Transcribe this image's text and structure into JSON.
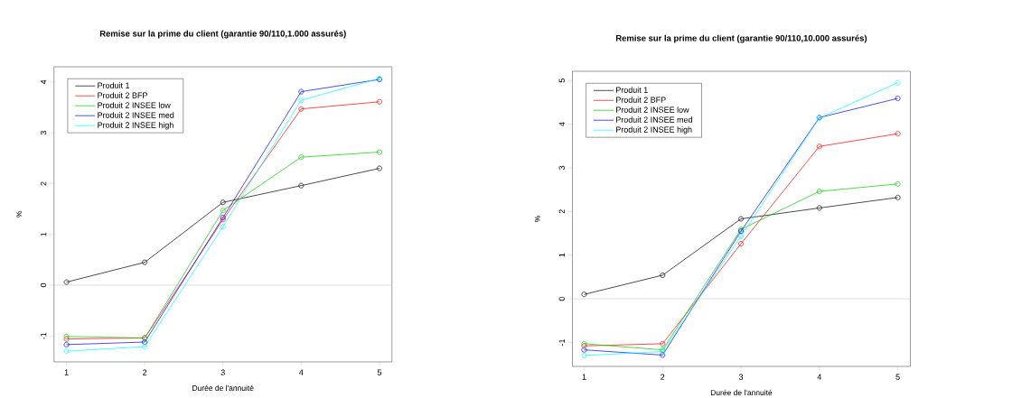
{
  "chart_data": [
    {
      "type": "line",
      "title": "Remise sur la prime du client (garantie 90/110,1.000 assurés)",
      "xlabel": "Durée de l'annuité",
      "ylabel": "%",
      "x": [
        1,
        2,
        3,
        4,
        5
      ],
      "xlim": [
        0.84,
        5.16
      ],
      "ylim": [
        -1.51,
        4.3
      ],
      "xticks": [
        1,
        2,
        3,
        4,
        5
      ],
      "yticks": [
        -1,
        0,
        1,
        2,
        3,
        4
      ],
      "marker": "circle",
      "legend": "top left",
      "grid": false,
      "ref_lines": [
        {
          "axis": "y",
          "value": 0,
          "color": "#d3d3d3"
        }
      ],
      "series": [
        {
          "name": "Produit 1",
          "color": "#000000",
          "values": [
            0.06,
            0.45,
            1.63,
            1.96,
            2.3
          ]
        },
        {
          "name": "Produit 2 BFP",
          "color": "#ff0000",
          "values": [
            -1.06,
            -1.04,
            1.29,
            3.47,
            3.61
          ]
        },
        {
          "name": "Produit 2 INSEE low",
          "color": "#00cd00",
          "values": [
            -1.01,
            -1.04,
            1.47,
            2.52,
            2.62
          ]
        },
        {
          "name": "Produit 2 INSEE med",
          "color": "#0000ff",
          "values": [
            -1.17,
            -1.12,
            1.33,
            3.81,
            4.05
          ]
        },
        {
          "name": "Produit 2 INSEE high",
          "color": "#00ffff",
          "values": [
            -1.3,
            -1.21,
            1.15,
            3.64,
            4.07
          ]
        }
      ]
    },
    {
      "type": "line",
      "title": "Remise sur la prime du client (garantie 90/110,10.000 assurés)",
      "xlabel": "Durée de l'annuité",
      "ylabel": "%",
      "x": [
        1,
        2,
        3,
        4,
        5
      ],
      "xlim": [
        0.85,
        5.16
      ],
      "ylim": [
        -1.55,
        5.21
      ],
      "xticks": [
        1,
        2,
        3,
        4,
        5
      ],
      "yticks": [
        -1,
        0,
        1,
        2,
        3,
        4,
        5
      ],
      "marker": "circle",
      "legend": "top left",
      "grid": false,
      "ref_lines": [
        {
          "axis": "y",
          "value": 0,
          "color": "#d3d3d3"
        }
      ],
      "series": [
        {
          "name": "Produit 1",
          "color": "#000000",
          "values": [
            0.1,
            0.54,
            1.83,
            2.08,
            2.32
          ]
        },
        {
          "name": "Produit 2 BFP",
          "color": "#ff0000",
          "values": [
            -1.08,
            -1.03,
            1.26,
            3.49,
            3.78
          ]
        },
        {
          "name": "Produit 2 INSEE low",
          "color": "#00cd00",
          "values": [
            -1.03,
            -1.17,
            1.59,
            2.46,
            2.63
          ]
        },
        {
          "name": "Produit 2 INSEE med",
          "color": "#0000ff",
          "values": [
            -1.17,
            -1.29,
            1.55,
            4.15,
            4.59
          ]
        },
        {
          "name": "Produit 2 INSEE high",
          "color": "#00ffff",
          "values": [
            -1.3,
            -1.21,
            1.43,
            4.14,
            4.95
          ]
        }
      ]
    }
  ]
}
